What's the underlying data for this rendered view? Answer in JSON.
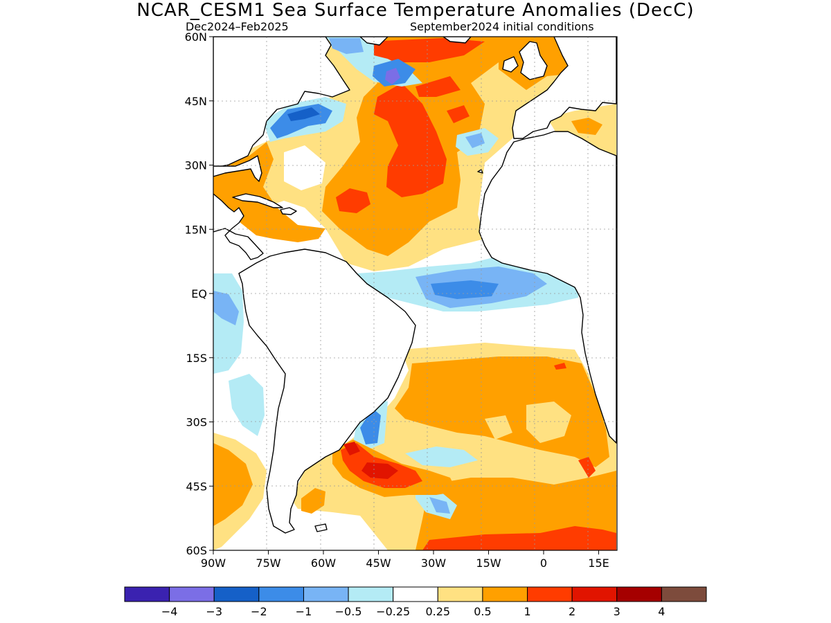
{
  "header": {
    "title": "NCAR_CESM1 Sea Surface Temperature Anomalies (DecC)",
    "subtitle_left": "Dec2024–Feb2025",
    "subtitle_right": "September2024 initial conditions"
  },
  "map": {
    "region": "Atlantic Ocean",
    "lon_range": [
      -90,
      20
    ],
    "lat_range": [
      -60,
      60
    ],
    "lat_ticks": [
      {
        "value": 60,
        "label": "60N"
      },
      {
        "value": 45,
        "label": "45N"
      },
      {
        "value": 30,
        "label": "30N"
      },
      {
        "value": 15,
        "label": "15N"
      },
      {
        "value": 0,
        "label": "EQ"
      },
      {
        "value": -15,
        "label": "15S"
      },
      {
        "value": -30,
        "label": "30S"
      },
      {
        "value": -45,
        "label": "45S"
      },
      {
        "value": -60,
        "label": "60S"
      }
    ],
    "lon_ticks": [
      {
        "value": -90,
        "label": "90W"
      },
      {
        "value": -75,
        "label": "75W"
      },
      {
        "value": -60,
        "label": "60W"
      },
      {
        "value": -45,
        "label": "45W"
      },
      {
        "value": -30,
        "label": "30W"
      },
      {
        "value": -15,
        "label": "15W"
      },
      {
        "value": 0,
        "label": "0"
      },
      {
        "value": 15,
        "label": "15E"
      }
    ],
    "grid": "dotted",
    "colors": {
      "neg_4": "#3a22b0",
      "neg_3": "#7b6ee6",
      "neg_2": "#1560c8",
      "neg_1": "#3c8ce8",
      "neg_05": "#78b4f5",
      "neg_025": "#b4ebf5",
      "neutral": "#ffffff",
      "pos_025": "#ffe182",
      "pos_05": "#ffa000",
      "pos_1": "#ff3c00",
      "pos_2": "#e11400",
      "pos_3": "#a50000",
      "pos_4": "#7d4b3c",
      "land": "#ffffff",
      "coast": "#000000"
    }
  },
  "legend": {
    "colors": [
      "#3a22b0",
      "#7b6ee6",
      "#1560c8",
      "#3c8ce8",
      "#78b4f5",
      "#b4ebf5",
      "#ffffff",
      "#ffe182",
      "#ffa000",
      "#ff3c00",
      "#e11400",
      "#a50000",
      "#7d4b3c"
    ],
    "labels": [
      "−4",
      "−3",
      "−2",
      "−1",
      "−0.5",
      "−0.25",
      "0.25",
      "0.5",
      "1",
      "2",
      "3",
      "4"
    ]
  }
}
